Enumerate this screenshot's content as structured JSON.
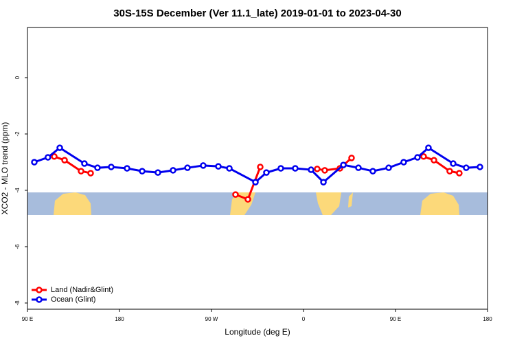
{
  "chart_data": {
    "type": "line",
    "title": "30S-15S December (Ver 11.1_late)   2019-01-01 to 2023-04-30",
    "x_label": "Longitude (deg E)",
    "y_label": "XCO2 - MLO trend (ppm)",
    "xlim": [
      90,
      540
    ],
    "xticks": [
      {
        "value": 90,
        "label": "90 E"
      },
      {
        "value": 180,
        "label": "180"
      },
      {
        "value": 270,
        "label": "90 W"
      },
      {
        "value": 360,
        "label": "0"
      },
      {
        "value": 450,
        "label": "90 E"
      },
      {
        "value": 540,
        "label": "180"
      }
    ],
    "ylim": [
      -8.22,
      1.78
    ],
    "yticks": [
      0,
      -2,
      -4,
      -6,
      -8
    ],
    "legend": "bottom-left",
    "series": [
      {
        "name": "Land (Nadir&Glint)",
        "color": "#ff0000",
        "x": [
          116.2,
          126.3,
          142.4,
          151.8,
          null,
          293.5,
          305.6,
          317.7,
          null,
          373.4,
          380.8,
          395.6,
          407,
          null,
          477.5,
          487.6,
          503,
          512.4
        ],
        "values": [
          -2.8,
          -2.93,
          -3.32,
          -3.39,
          null,
          -4.15,
          -4.32,
          -3.17,
          null,
          -3.24,
          -3.29,
          -3.22,
          -2.85,
          null,
          -2.8,
          -2.93,
          -3.32,
          -3.39
        ]
      },
      {
        "name": "Ocean (Glint)",
        "color": "#0000ee",
        "x": [
          96.7,
          110,
          121.6,
          145.7,
          158.5,
          171.9,
          187.4,
          202.2,
          217.6,
          232.4,
          246.5,
          261.9,
          276.7,
          287.5,
          313,
          323.7,
          337.8,
          351.9,
          367.4,
          379.5,
          399,
          413.7,
          427.8,
          443.3,
          458,
          471.5,
          482.2,
          506.4,
          519.1,
          532.6
        ],
        "values": [
          -3.0,
          -2.83,
          -2.49,
          -3.05,
          -3.2,
          -3.17,
          -3.22,
          -3.32,
          -3.37,
          -3.29,
          -3.2,
          -3.12,
          -3.15,
          -3.22,
          -3.71,
          -3.37,
          -3.22,
          -3.22,
          -3.27,
          -3.71,
          -3.1,
          -3.2,
          -3.32,
          -3.2,
          -3.0,
          -2.83,
          -2.49,
          -3.05,
          -3.2,
          -3.17
        ]
      }
    ]
  }
}
